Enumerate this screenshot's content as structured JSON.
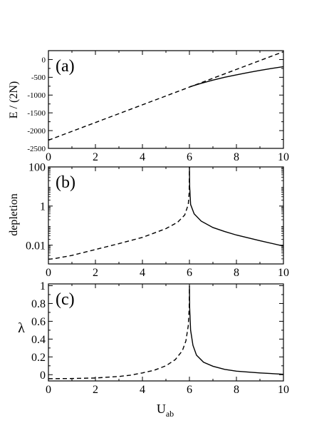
{
  "chart_data": [
    {
      "type": "line",
      "panel_label": "(a)",
      "xlabel": "",
      "ylabel": "E / (2N)",
      "xlim": [
        0,
        10
      ],
      "ylim": [
        -2500,
        250
      ],
      "yscale": "linear",
      "xticks": [
        0,
        2,
        4,
        6,
        8,
        10
      ],
      "xtick_labels": [
        "0",
        "2",
        "4",
        "6",
        "8",
        "10"
      ],
      "yticks": [
        -2500,
        -2000,
        -1500,
        -1000,
        -500,
        0
      ],
      "ytick_labels": [
        "-2500",
        "-2000",
        "-1500",
        "-1000",
        "-500",
        "0"
      ],
      "grid": false,
      "series": [
        {
          "style": "dashed",
          "x": [
            0,
            10
          ],
          "y": [
            -2270,
            220
          ]
        },
        {
          "style": "solid",
          "x": [
            6,
            6.5,
            7,
            7.5,
            8,
            8.5,
            9,
            9.5,
            10
          ],
          "y": [
            -770,
            -670,
            -580,
            -500,
            -430,
            -365,
            -305,
            -250,
            -200
          ]
        }
      ]
    },
    {
      "type": "line",
      "panel_label": "(b)",
      "xlabel": "",
      "ylabel": "depletion",
      "xlim": [
        0,
        10
      ],
      "ylim": [
        0.0011,
        100
      ],
      "yscale": "log",
      "xticks": [
        0,
        2,
        4,
        6,
        8,
        10
      ],
      "xtick_labels": [
        "0",
        "2",
        "4",
        "6",
        "8",
        "10"
      ],
      "yticks": [
        0.01,
        1,
        100
      ],
      "ytick_labels": [
        "0.01",
        "1",
        "100"
      ],
      "grid": false,
      "series": [
        {
          "style": "dashed",
          "x": [
            0,
            0.3,
            1,
            2,
            3,
            4,
            5,
            5.5,
            5.8,
            5.95,
            5.99,
            6.0
          ],
          "y": [
            0.0019,
            0.0021,
            0.003,
            0.006,
            0.012,
            0.025,
            0.07,
            0.15,
            0.35,
            1.2,
            5,
            100
          ]
        },
        {
          "style": "solid",
          "x": [
            6.0,
            6.01,
            6.05,
            6.2,
            6.5,
            7,
            7.5,
            8,
            9,
            10
          ],
          "y": [
            100,
            10,
            1.2,
            0.4,
            0.17,
            0.08,
            0.05,
            0.033,
            0.017,
            0.009
          ]
        }
      ]
    },
    {
      "type": "line",
      "panel_label": "(c)",
      "xlabel": "U_ab",
      "ylabel": "λ",
      "xlim": [
        0,
        10
      ],
      "ylim": [
        -0.07,
        1.02
      ],
      "yscale": "linear",
      "xticks": [
        0,
        2,
        4,
        6,
        8,
        10
      ],
      "xtick_labels": [
        "0",
        "2",
        "4",
        "6",
        "8",
        "10"
      ],
      "yticks": [
        0,
        0.2,
        0.4,
        0.6,
        0.8,
        1
      ],
      "ytick_labels": [
        "0",
        "0.2",
        "0.4",
        "0.6",
        "0.8",
        "1"
      ],
      "grid": false,
      "series": [
        {
          "style": "dashed",
          "x": [
            0,
            1,
            2,
            3,
            3.5,
            4,
            4.5,
            5,
            5.4,
            5.7,
            5.85,
            5.95,
            5.99,
            6.0
          ],
          "y": [
            -0.045,
            -0.043,
            -0.037,
            -0.02,
            -0.005,
            0.02,
            0.05,
            0.1,
            0.17,
            0.27,
            0.38,
            0.55,
            0.75,
            1.0
          ]
        },
        {
          "style": "solid",
          "x": [
            6.0,
            6.01,
            6.05,
            6.15,
            6.3,
            6.6,
            7,
            7.5,
            8,
            9,
            10
          ],
          "y": [
            1.0,
            0.75,
            0.5,
            0.33,
            0.22,
            0.14,
            0.095,
            0.06,
            0.04,
            0.02,
            0.005
          ]
        }
      ]
    }
  ],
  "xlabel_main": "U",
  "xlabel_sub": "ab"
}
